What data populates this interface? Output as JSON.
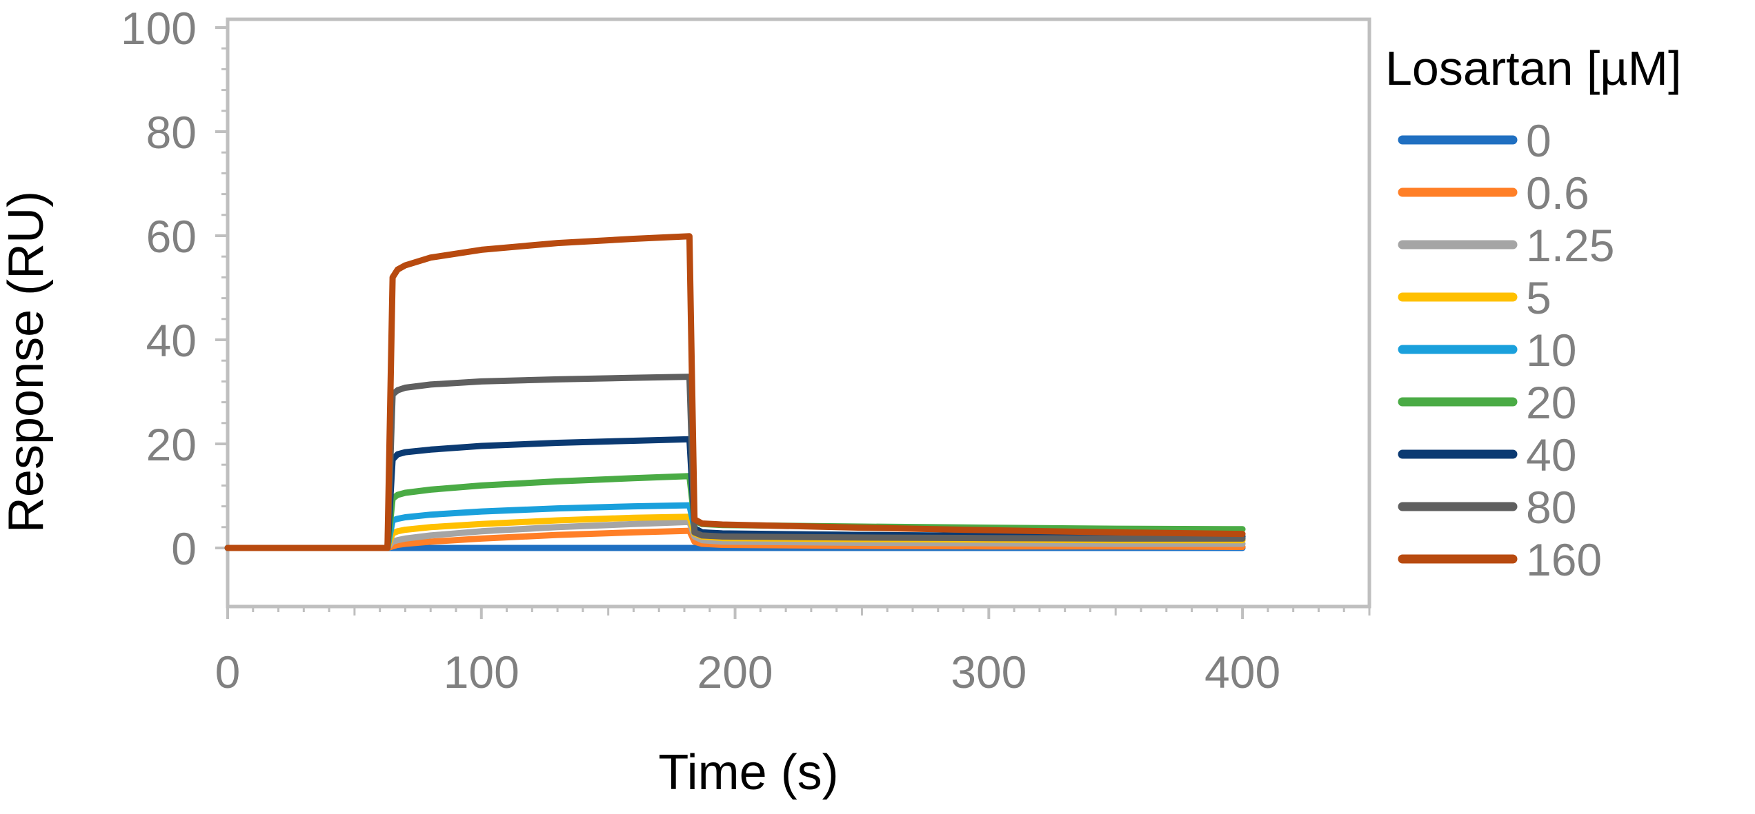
{
  "chart_data": {
    "type": "line",
    "title": "",
    "xlabel": "Time (s)",
    "ylabel": "Response (RU)",
    "xlim": [
      0,
      450
    ],
    "ylim": [
      -10,
      100
    ],
    "xticks": [
      0,
      100,
      200,
      300,
      400
    ],
    "yticks": [
      0,
      20,
      40,
      60,
      80,
      100
    ],
    "x_tick_labels": [
      "0",
      "100",
      "200",
      "300",
      "400"
    ],
    "y_tick_labels": [
      "0",
      "20",
      "40",
      "60",
      "80",
      "100"
    ],
    "grid": false,
    "legend_title": "Losartan [µM]",
    "legend_position": "right",
    "x": [
      0,
      63,
      65,
      67,
      70,
      80,
      100,
      130,
      160,
      182,
      184,
      187,
      195,
      250,
      300,
      350,
      400
    ],
    "series": [
      {
        "name": "0",
        "color": "#1f6fc1",
        "values": [
          0,
          0,
          0,
          0,
          0,
          0,
          0,
          0,
          0,
          0,
          0,
          0,
          0,
          0,
          0,
          0,
          0
        ]
      },
      {
        "name": "0.6",
        "color": "#ff7f27",
        "values": [
          0,
          0,
          0.3,
          0.6,
          0.8,
          1.2,
          1.8,
          2.5,
          3.0,
          3.3,
          1.2,
          0.8,
          0.6,
          0.4,
          0.3,
          0.3,
          0.2
        ]
      },
      {
        "name": "1.25",
        "color": "#a5a5a5",
        "values": [
          0,
          0,
          1.2,
          1.5,
          1.8,
          2.4,
          3.2,
          4.0,
          4.6,
          5.0,
          2.2,
          1.5,
          1.2,
          1.0,
          0.9,
          0.8,
          0.8
        ]
      },
      {
        "name": "5",
        "color": "#ffc000",
        "values": [
          0,
          0,
          2.8,
          3.2,
          3.5,
          4.0,
          4.6,
          5.3,
          5.8,
          6.0,
          2.8,
          2.2,
          1.9,
          1.7,
          1.6,
          1.5,
          1.5
        ]
      },
      {
        "name": "10",
        "color": "#1aa0dc",
        "values": [
          0,
          0,
          5.3,
          5.6,
          5.9,
          6.4,
          7.0,
          7.6,
          8.0,
          8.2,
          3.8,
          3.0,
          2.7,
          2.5,
          2.3,
          2.2,
          2.2
        ]
      },
      {
        "name": "20",
        "color": "#4aab45",
        "values": [
          0,
          0,
          9.5,
          10.2,
          10.6,
          11.2,
          12.0,
          12.8,
          13.4,
          13.8,
          5.2,
          4.6,
          4.4,
          4.1,
          3.9,
          3.7,
          3.6
        ]
      },
      {
        "name": "40",
        "color": "#0b3a72",
        "values": [
          0,
          0,
          17.0,
          18.0,
          18.4,
          18.9,
          19.6,
          20.2,
          20.6,
          20.9,
          3.8,
          3.0,
          2.8,
          2.5,
          2.3,
          2.2,
          2.2
        ]
      },
      {
        "name": "80",
        "color": "#5f5f5f",
        "values": [
          0,
          0,
          29.5,
          30.3,
          30.8,
          31.4,
          32.0,
          32.4,
          32.7,
          32.9,
          3.0,
          2.4,
          2.2,
          2.0,
          1.9,
          1.8,
          1.8
        ]
      },
      {
        "name": "160",
        "color": "#b84a0f",
        "values": [
          0,
          0,
          52.0,
          53.5,
          54.3,
          55.8,
          57.3,
          58.6,
          59.4,
          59.9,
          5.5,
          4.7,
          4.5,
          3.9,
          3.4,
          3.0,
          2.7
        ]
      }
    ]
  }
}
